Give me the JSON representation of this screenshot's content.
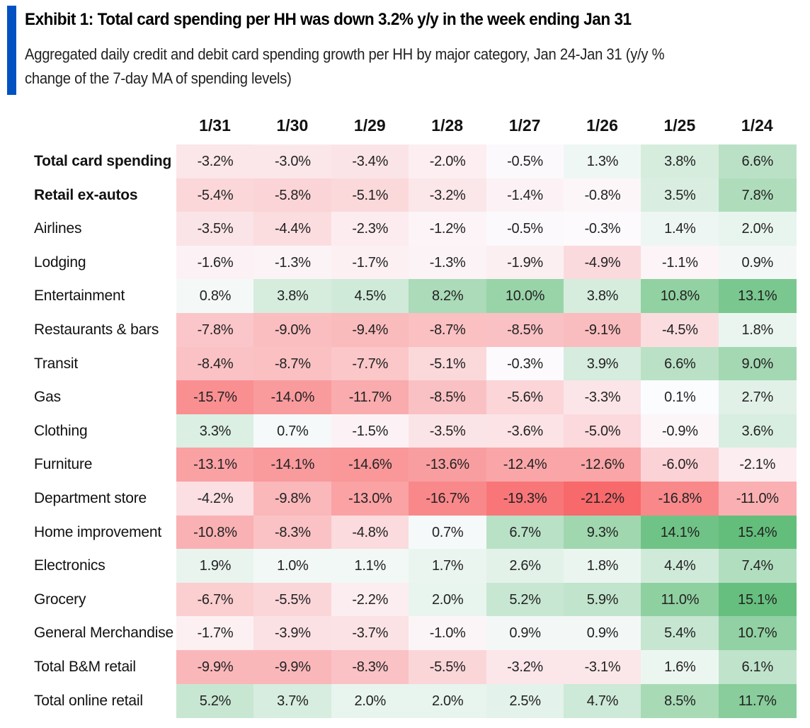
{
  "header": {
    "title": "Exhibit 1: Total card spending per HH was down 3.2% y/y in the week ending Jan 31",
    "subtitle_lines": [
      "Aggregated daily credit and debit card spending growth per HH by major category, Jan 24-Jan 31 (y/y %",
      "change of the 7-day MA of spending levels)"
    ]
  },
  "colors": {
    "accent": "#0052c2",
    "negative_max": "#f8696b",
    "neutral": "#fcfcff",
    "positive_max": "#63be7b"
  },
  "chart_data": {
    "type": "heatmap",
    "title": "Exhibit 1: Total card spending per HH was down 3.2% y/y in the week ending Jan 31",
    "subtitle": "Aggregated daily credit and debit card spending growth per HH by major category, Jan 24-Jan 31 (y/y % change of the 7-day MA of spending levels)",
    "unit": "%",
    "color_scale": {
      "min": -21.2,
      "mid": 0,
      "max": 15.4,
      "low_color": "#f8696b",
      "mid_color": "#fcfcff",
      "high_color": "#63be7b"
    },
    "columns": [
      "1/31",
      "1/30",
      "1/29",
      "1/28",
      "1/27",
      "1/26",
      "1/25",
      "1/24"
    ],
    "rows": [
      {
        "label": "Total card spending",
        "bold": true,
        "values": [
          -3.2,
          -3.0,
          -3.4,
          -2.0,
          -0.5,
          1.3,
          3.8,
          6.6
        ]
      },
      {
        "label": "Retail ex-autos",
        "bold": true,
        "values": [
          -5.4,
          -5.8,
          -5.1,
          -3.2,
          -1.4,
          -0.8,
          3.5,
          7.8
        ]
      },
      {
        "label": "Airlines",
        "bold": false,
        "values": [
          -3.5,
          -4.4,
          -2.3,
          -1.2,
          -0.5,
          -0.3,
          1.4,
          2.0
        ]
      },
      {
        "label": "Lodging",
        "bold": false,
        "values": [
          -1.6,
          -1.3,
          -1.7,
          -1.3,
          -1.9,
          -4.9,
          -1.1,
          0.9
        ]
      },
      {
        "label": "Entertainment",
        "bold": false,
        "values": [
          0.8,
          3.8,
          4.5,
          8.2,
          10.0,
          3.8,
          10.8,
          13.1
        ]
      },
      {
        "label": "Restaurants & bars",
        "bold": false,
        "values": [
          -7.8,
          -9.0,
          -9.4,
          -8.7,
          -8.5,
          -9.1,
          -4.5,
          1.8
        ]
      },
      {
        "label": "Transit",
        "bold": false,
        "values": [
          -8.4,
          -8.7,
          -7.7,
          -5.1,
          -0.3,
          3.9,
          6.6,
          9.0
        ]
      },
      {
        "label": "Gas",
        "bold": false,
        "values": [
          -15.7,
          -14.0,
          -11.7,
          -8.5,
          -5.6,
          -3.3,
          0.1,
          2.7
        ]
      },
      {
        "label": "Clothing",
        "bold": false,
        "values": [
          3.3,
          0.7,
          -1.5,
          -3.5,
          -3.6,
          -5.0,
          -0.9,
          3.6
        ]
      },
      {
        "label": "Furniture",
        "bold": false,
        "values": [
          -13.1,
          -14.1,
          -14.6,
          -13.6,
          -12.4,
          -12.6,
          -6.0,
          -2.1
        ]
      },
      {
        "label": "Department store",
        "bold": false,
        "values": [
          -4.2,
          -9.8,
          -13.0,
          -16.7,
          -19.3,
          -21.2,
          -16.8,
          -11.0
        ]
      },
      {
        "label": "Home improvement",
        "bold": false,
        "values": [
          -10.8,
          -8.3,
          -4.8,
          0.7,
          6.7,
          9.3,
          14.1,
          15.4
        ]
      },
      {
        "label": "Electronics",
        "bold": false,
        "values": [
          1.9,
          1.0,
          1.1,
          1.7,
          2.6,
          1.8,
          4.4,
          7.4
        ]
      },
      {
        "label": "Grocery",
        "bold": false,
        "values": [
          -6.7,
          -5.5,
          -2.2,
          2.0,
          5.2,
          5.9,
          11.0,
          15.1
        ]
      },
      {
        "label": "General Merchandise",
        "bold": false,
        "values": [
          -1.7,
          -3.9,
          -3.7,
          -1.0,
          0.9,
          0.9,
          5.4,
          10.7
        ]
      },
      {
        "label": "Total B&M retail",
        "bold": false,
        "values": [
          -9.9,
          -9.9,
          -8.3,
          -5.5,
          -3.2,
          -3.1,
          1.6,
          6.1
        ]
      },
      {
        "label": "Total online retail",
        "bold": false,
        "values": [
          5.2,
          3.7,
          2.0,
          2.0,
          2.5,
          4.7,
          8.5,
          11.7
        ]
      }
    ]
  }
}
